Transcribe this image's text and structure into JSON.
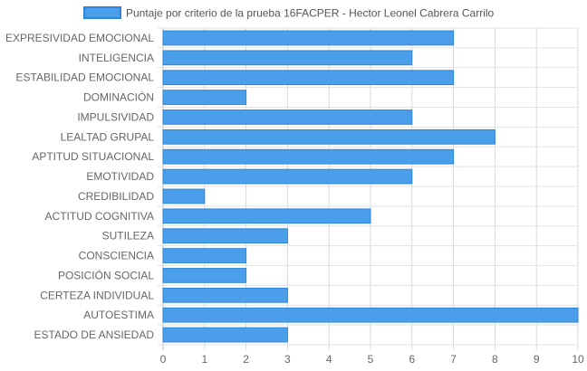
{
  "chart_data": {
    "type": "bar",
    "orientation": "horizontal",
    "categories": [
      "EXPRESIVIDAD EMOCIONAL",
      "INTELIGENCIA",
      "ESTABILIDAD EMOCIONAL",
      "DOMINACIÓN",
      "IMPULSIVIDAD",
      "LEALTAD GRUPAL",
      "APTITUD SITUACIONAL",
      "EMOTIVIDAD",
      "CREDIBILIDAD",
      "ACTITUD COGNITIVA",
      "SUTILEZA",
      "CONSCIENCIA",
      "POSICIÓN SOCIAL",
      "CERTEZA INDIVIDUAL",
      "AUTOESTIMA",
      "ESTADO DE ANSIEDAD"
    ],
    "series": [
      {
        "name": "Puntaje por criterio de la prueba 16FACPER - Hector Leonel Cabrera Carrilo",
        "values": [
          7,
          6,
          7,
          2,
          6,
          8,
          7,
          6,
          1,
          5,
          3,
          2,
          2,
          3,
          10,
          3
        ],
        "color": "#4a9eea",
        "border_color": "#2f86d8"
      }
    ],
    "x_ticks": [
      "0",
      "1",
      "2",
      "3",
      "4",
      "5",
      "6",
      "7",
      "8",
      "9",
      "10"
    ],
    "xlim": [
      0,
      10
    ],
    "grid": true,
    "legend_position": "top"
  }
}
